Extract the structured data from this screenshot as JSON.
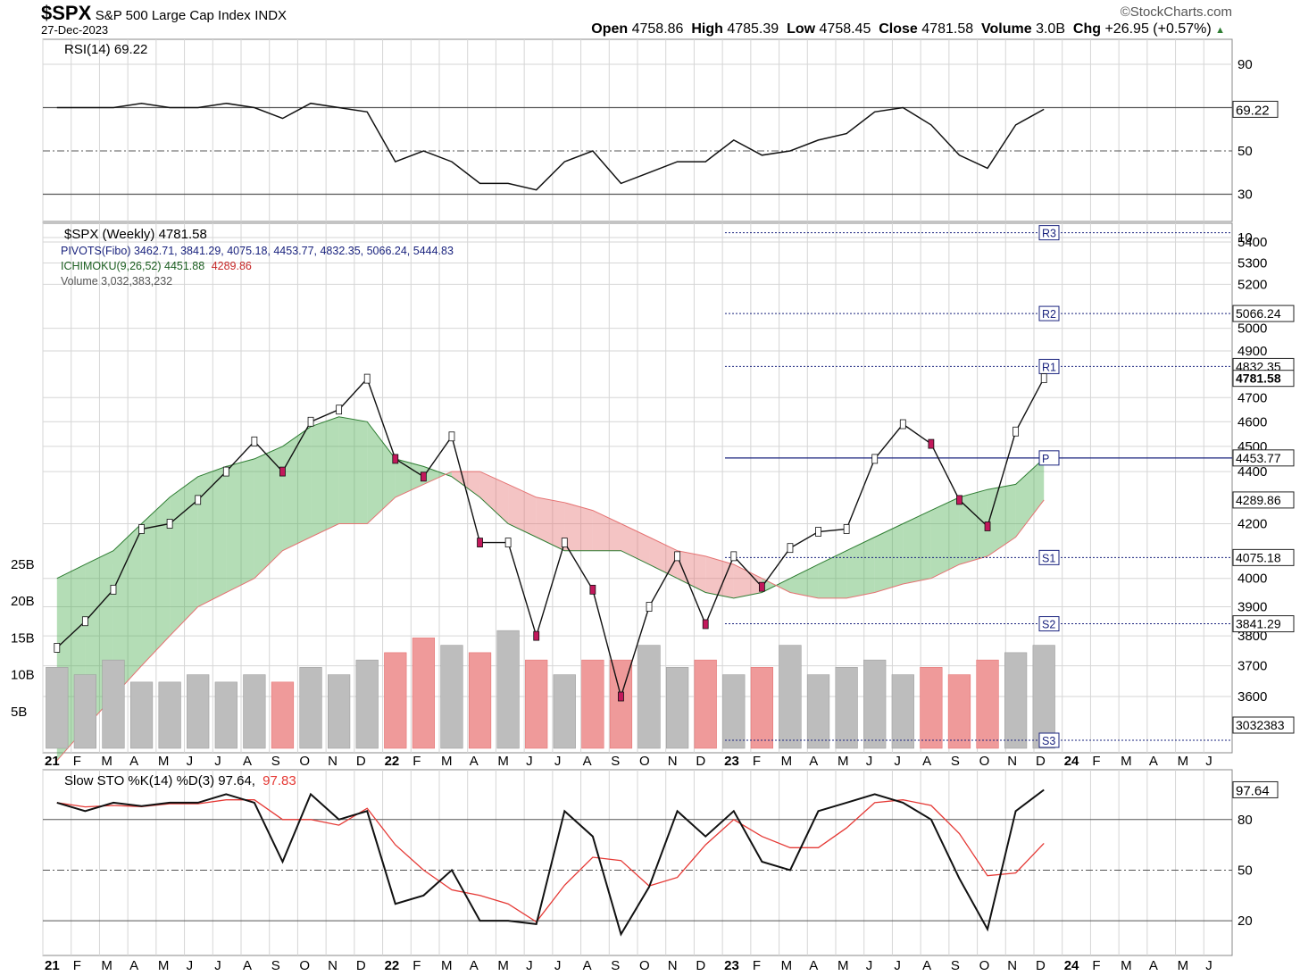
{
  "header": {
    "symbol": "$SPX",
    "name": "S&P 500 Large Cap Index",
    "exchange": "INDX",
    "date": "27-Dec-2023",
    "brand": "©StockCharts.com",
    "open_label": "Open",
    "open": "4758.86",
    "high_label": "High",
    "high": "4785.39",
    "low_label": "Low",
    "low": "4758.45",
    "close_label": "Close",
    "close": "4781.58",
    "volume_label": "Volume",
    "volume": "3.0B",
    "chg_label": "Chg",
    "chg": "+26.95 (+0.57%)",
    "up_color": "#2e7d32"
  },
  "rsi": {
    "label": "RSI(14) 69.22",
    "last": "69.22",
    "ticks": [
      "90",
      "50",
      "30",
      "10"
    ]
  },
  "price_legends": {
    "series": "$SPX (Weekly) 4781.58",
    "pivots": "PIVOTS(Fibo) 3462.71, 3841.29, 4075.18, 4453.77, 4832.35, 5066.24, 5444.83",
    "ichimoku_a": "ICHIMOKU(9,26,52) 4451.88",
    "ichimoku_b": "4289.86",
    "volume": "Volume 3,032,383,232"
  },
  "price_axis": {
    "ticks": [
      "5400",
      "5300",
      "5200",
      "5000",
      "4900",
      "4700",
      "4600",
      "4500",
      "4400",
      "4200",
      "4000",
      "3900",
      "3800",
      "3700",
      "3600"
    ],
    "pivot_labels": [
      "R3",
      "R2",
      "R1",
      "P",
      "S1",
      "S2",
      "S3"
    ],
    "value_boxes": [
      "5066.24",
      "4832.35",
      "4781.58",
      "4453.77",
      "4289.86",
      "4075.18",
      "3841.29",
      "3032383"
    ]
  },
  "volume_axis": {
    "ticks": [
      "25B",
      "20B",
      "15B",
      "10B",
      "5B"
    ]
  },
  "x_axis": {
    "labels": [
      "21",
      "F",
      "M",
      "A",
      "M",
      "J",
      "J",
      "A",
      "S",
      "O",
      "N",
      "D",
      "22",
      "F",
      "M",
      "A",
      "M",
      "J",
      "J",
      "A",
      "S",
      "O",
      "N",
      "D",
      "23",
      "F",
      "M",
      "A",
      "M",
      "J",
      "J",
      "A",
      "S",
      "O",
      "N",
      "D",
      "24",
      "F",
      "M",
      "A",
      "M",
      "J"
    ]
  },
  "sto": {
    "label_k": "Slow STO %K(14) %D(3) 97.64,",
    "label_d": "97.83",
    "last": "97.64",
    "ticks": [
      "80",
      "50",
      "20"
    ],
    "d_color": "#e53935"
  },
  "chart_data": {
    "type": "line",
    "title": "$SPX S&P 500 Large Cap Index INDX",
    "subtitle": "Weekly",
    "x": [
      "2021-01",
      "2021-02",
      "2021-03",
      "2021-04",
      "2021-05",
      "2021-06",
      "2021-07",
      "2021-08",
      "2021-09",
      "2021-10",
      "2021-11",
      "2021-12",
      "2022-01",
      "2022-02",
      "2022-03",
      "2022-04",
      "2022-05",
      "2022-06",
      "2022-07",
      "2022-08",
      "2022-09",
      "2022-10",
      "2022-11",
      "2022-12",
      "2023-01",
      "2023-02",
      "2023-03",
      "2023-04",
      "2023-05",
      "2023-06",
      "2023-07",
      "2023-08",
      "2023-09",
      "2023-10",
      "2023-11",
      "2023-12"
    ],
    "series": [
      {
        "name": "$SPX",
        "values": [
          3760,
          3850,
          3960,
          4180,
          4200,
          4290,
          4400,
          4520,
          4400,
          4600,
          4650,
          4780,
          4450,
          4380,
          4540,
          4130,
          4130,
          3800,
          4130,
          3960,
          3600,
          3900,
          4080,
          3840,
          4080,
          3970,
          4110,
          4170,
          4180,
          4450,
          4590,
          4510,
          4290,
          4190,
          4560,
          4782
        ]
      },
      {
        "name": "RSI(14)",
        "values": [
          70,
          70,
          70,
          72,
          70,
          70,
          72,
          70,
          65,
          72,
          70,
          68,
          45,
          50,
          45,
          35,
          35,
          32,
          45,
          50,
          35,
          40,
          45,
          45,
          55,
          48,
          50,
          55,
          58,
          68,
          70,
          62,
          48,
          42,
          62,
          69.22
        ]
      },
      {
        "name": "Slow STO %K(14)",
        "values": [
          90,
          85,
          90,
          88,
          90,
          90,
          95,
          90,
          55,
          95,
          80,
          85,
          30,
          35,
          50,
          20,
          20,
          18,
          85,
          70,
          12,
          40,
          85,
          70,
          85,
          55,
          50,
          85,
          90,
          95,
          90,
          80,
          45,
          15,
          85,
          97.64
        ]
      }
    ],
    "pivots": {
      "S3": 3462.71,
      "S2": 3841.29,
      "S1": 4075.18,
      "P": 4453.77,
      "R1": 4832.35,
      "R2": 5066.24,
      "R3": 5444.83
    },
    "ichimoku": {
      "span_a": 4451.88,
      "span_b": 4289.86
    },
    "volume_last": 3032383232,
    "rsi_levels": [
      70,
      50,
      30
    ],
    "sto_levels": [
      80,
      50,
      20
    ],
    "grid": true,
    "legend": "top-left"
  }
}
